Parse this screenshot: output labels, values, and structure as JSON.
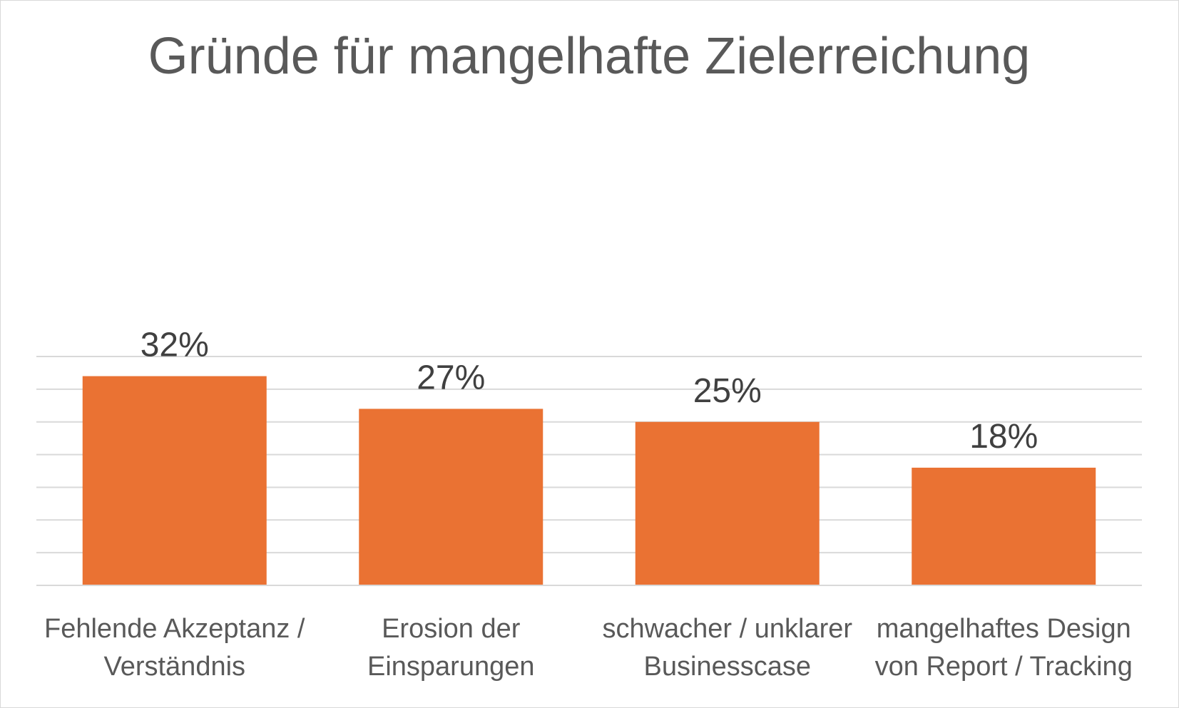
{
  "chart_data": {
    "type": "bar",
    "title": "Gründe für mangelhafte Zielerreichung",
    "categories": [
      [
        "Fehlende Akzeptanz /",
        "Verständnis"
      ],
      [
        "Erosion der",
        "Einsparungen"
      ],
      [
        "schwacher / unklarer",
        "Businesscase"
      ],
      [
        "mangelhaftes Design",
        "von Report / Tracking"
      ]
    ],
    "values": [
      32,
      27,
      25,
      18
    ],
    "data_labels": [
      "32%",
      "27%",
      "25%",
      "18%"
    ],
    "value_unit": "%",
    "ylim": [
      0,
      35
    ],
    "gridline_step": 5,
    "grid": true,
    "y_axis_labels_shown": false,
    "legend": "none",
    "bar_color": "#ea7233"
  }
}
